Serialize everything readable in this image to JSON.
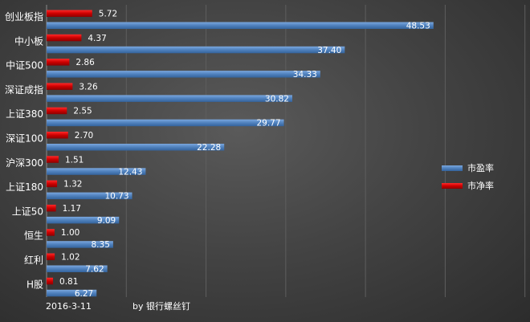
{
  "chart_data": {
    "type": "bar",
    "orientation": "horizontal",
    "categories": [
      "创业板指",
      "中小板",
      "中证500",
      "深证成指",
      "上证380",
      "深证100",
      "沪深300",
      "上证180",
      "上证50",
      "恒生",
      "红利",
      "H股"
    ],
    "series": [
      {
        "name": "市净率",
        "color": "#cc0000",
        "values": [
          5.72,
          4.37,
          2.86,
          3.26,
          2.55,
          2.7,
          1.51,
          1.32,
          1.17,
          1.0,
          1.02,
          0.81
        ]
      },
      {
        "name": "市盈率",
        "color": "#4f81bd",
        "values": [
          48.53,
          37.4,
          34.33,
          30.82,
          29.77,
          22.28,
          12.43,
          10.73,
          9.09,
          8.35,
          7.62,
          6.27
        ]
      }
    ],
    "value_labels": {
      "市净率": [
        "5.72",
        "4.37",
        "2.86",
        "3.26",
        "2.55",
        "2.70",
        "1.51",
        "1.32",
        "1.17",
        "1.00",
        "1.02",
        "0.81"
      ],
      "市盈率": [
        "48.53",
        "37.40",
        "34.33",
        "30.82",
        "29.77",
        "22.28",
        "12.43",
        "10.73",
        "9.09",
        "8.35",
        "7.62",
        "6.27"
      ]
    },
    "legend": [
      {
        "name": "市盈率",
        "color": "#4f81bd"
      },
      {
        "name": "市净率",
        "color": "#cc0000"
      }
    ],
    "legend_position": "right",
    "xlim": [
      0,
      60
    ],
    "grid": true,
    "date": "2016-3-11",
    "credit": "by 银行螺丝钉"
  }
}
